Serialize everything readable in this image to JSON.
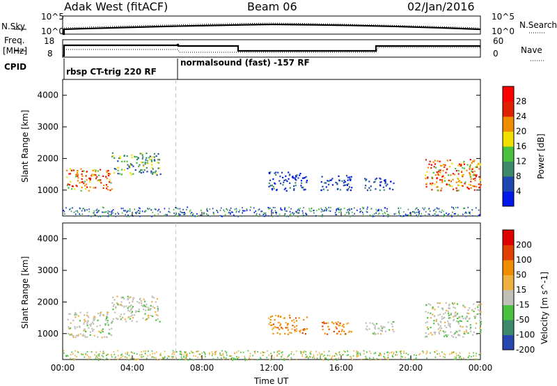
{
  "header": {
    "station": "Adak West (fitACF)",
    "beam": "Beam 06",
    "date": "02/Jan/2016"
  },
  "top_panels": {
    "nsky_label": "N.Sky",
    "nsky_ticks": [
      "10^5",
      "10^0"
    ],
    "nsearch_label": "N.Search",
    "nsearch_ticks": [
      "10^5",
      "10^0"
    ],
    "freq_label_1": "Freq.",
    "freq_label_2": "[MHz]",
    "freq_ticks": [
      "18",
      "8"
    ],
    "nave_label": "Nave",
    "nave_ticks": [
      "60",
      "0"
    ],
    "cpid_label": "CPID",
    "cpid_1": "rbsp CT-trig 220 RF",
    "cpid_2": "normalsound (fast) -157 RF"
  },
  "chart_data": [
    {
      "type": "heatmap",
      "title": "",
      "ylabel": "Slant Range [km]",
      "ylim": [
        180,
        4500
      ],
      "yticks": [
        "4000",
        "3000",
        "2000",
        "1000"
      ],
      "xticks": [
        "00:00",
        "04:00",
        "08:00",
        "12:00",
        "16:00",
        "20:00",
        "00:00"
      ],
      "colorbar_label": "Power [dB]",
      "colorbar_ticks": [
        "28",
        "24",
        "20",
        "16",
        "12",
        "8",
        "4"
      ],
      "colors": [
        "#0018e8",
        "#2046b0",
        "#3c8a6a",
        "#48c040",
        "#f0e000",
        "#f08c00",
        "#e02000",
        "#ff0000"
      ],
      "regions": [
        {
          "t0": 0.2,
          "t1": 2.8,
          "r0": 1000,
          "r1": 1700,
          "level": "high"
        },
        {
          "t0": 2.8,
          "t1": 5.6,
          "r0": 1500,
          "r1": 2200,
          "level": "mid"
        },
        {
          "t0": 11.8,
          "t1": 14.0,
          "r0": 1000,
          "r1": 1600,
          "level": "low"
        },
        {
          "t0": 14.8,
          "t1": 16.6,
          "r0": 1000,
          "r1": 1500,
          "level": "low"
        },
        {
          "t0": 17.3,
          "t1": 19.0,
          "r0": 1000,
          "r1": 1400,
          "level": "low"
        },
        {
          "t0": 20.8,
          "t1": 24.0,
          "r0": 1000,
          "r1": 2000,
          "level": "high"
        }
      ]
    },
    {
      "type": "heatmap",
      "title": "",
      "ylabel": "Slant Range [km]",
      "ylim": [
        180,
        4500
      ],
      "yticks": [
        "4000",
        "3000",
        "2000",
        "1000"
      ],
      "xticks": [
        "00:00",
        "04:00",
        "08:00",
        "12:00",
        "16:00",
        "20:00",
        "00:00"
      ],
      "xlabel": "Time UT",
      "colorbar_label": "Velocity [m s^-1]",
      "colorbar_ticks": [
        "200",
        "100",
        "50",
        "15",
        "-15",
        "-50",
        "-100",
        "-200"
      ],
      "colors": [
        "#2846b0",
        "#3c8a6a",
        "#48c040",
        "#c0c0b8",
        "#f0b040",
        "#f08c00",
        "#e04000",
        "#e00000"
      ],
      "regions": [
        {
          "t0": 0.2,
          "t1": 2.8,
          "r0": 900,
          "r1": 1700,
          "level": "gray"
        },
        {
          "t0": 2.8,
          "t1": 5.6,
          "r0": 1400,
          "r1": 2200,
          "level": "gray"
        },
        {
          "t0": 11.8,
          "t1": 14.0,
          "r0": 1000,
          "r1": 1600,
          "level": "orange"
        },
        {
          "t0": 14.8,
          "t1": 16.6,
          "r0": 1000,
          "r1": 1400,
          "level": "orange"
        },
        {
          "t0": 17.3,
          "t1": 19.0,
          "r0": 1000,
          "r1": 1400,
          "level": "gray"
        },
        {
          "t0": 20.8,
          "t1": 24.0,
          "r0": 900,
          "r1": 2000,
          "level": "gray"
        }
      ]
    }
  ]
}
